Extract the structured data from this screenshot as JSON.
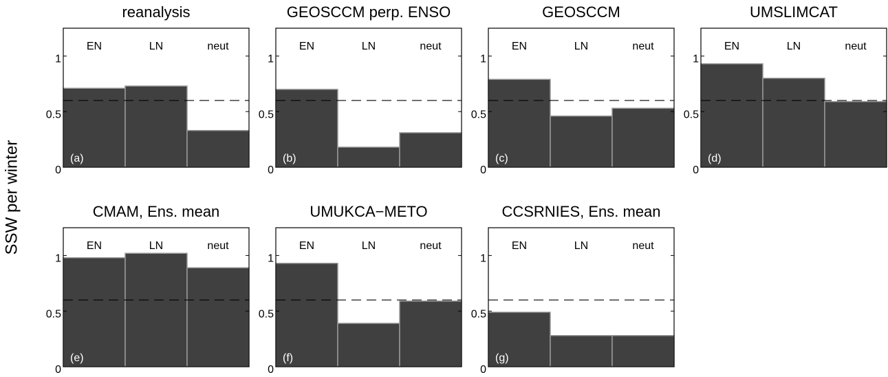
{
  "ylabel": "SSW per winter",
  "chart_data": [
    {
      "type": "bar",
      "title": "reanalysis",
      "panel_label": "(a)",
      "categories": [
        "EN",
        "LN",
        "neut"
      ],
      "values": [
        0.71,
        0.73,
        0.33
      ],
      "color": "#404040",
      "reference_line": 0.6,
      "ylim": [
        0,
        1.25
      ],
      "yticks": [
        0,
        0.5,
        1
      ]
    },
    {
      "type": "bar",
      "title": "GEOSCCM perp. ENSO",
      "panel_label": "(b)",
      "categories": [
        "EN",
        "LN",
        "neut"
      ],
      "values": [
        0.7,
        0.18,
        0.31
      ],
      "color": "#404040",
      "reference_line": 0.6,
      "ylim": [
        0,
        1.25
      ],
      "yticks": [
        0,
        0.5,
        1
      ]
    },
    {
      "type": "bar",
      "title": "GEOSCCM",
      "panel_label": "(c)",
      "categories": [
        "EN",
        "LN",
        "neut"
      ],
      "values": [
        0.79,
        0.46,
        0.53
      ],
      "color": "#404040",
      "reference_line": 0.6,
      "ylim": [
        0,
        1.25
      ],
      "yticks": [
        0,
        0.5,
        1
      ]
    },
    {
      "type": "bar",
      "title": "UMSLIMCAT",
      "panel_label": "(d)",
      "categories": [
        "EN",
        "LN",
        "neut"
      ],
      "values": [
        0.93,
        0.8,
        0.59
      ],
      "color": "#404040",
      "reference_line": 0.6,
      "ylim": [
        0,
        1.25
      ],
      "yticks": [
        0,
        0.5,
        1
      ]
    },
    {
      "type": "bar",
      "title": "CMAM, Ens. mean",
      "panel_label": "(e)",
      "categories": [
        "EN",
        "LN",
        "neut"
      ],
      "values": [
        0.98,
        1.02,
        0.89
      ],
      "color": "#404040",
      "reference_line": 0.6,
      "ylim": [
        0,
        1.25
      ],
      "yticks": [
        0,
        0.5,
        1
      ]
    },
    {
      "type": "bar",
      "title": "UMUKCA−METO",
      "panel_label": "(f)",
      "categories": [
        "EN",
        "LN",
        "neut"
      ],
      "values": [
        0.93,
        0.39,
        0.59
      ],
      "color": "#404040",
      "reference_line": 0.6,
      "ylim": [
        0,
        1.25
      ],
      "yticks": [
        0,
        0.5,
        1
      ]
    },
    {
      "type": "bar",
      "title": "CCSRNIES, Ens. mean",
      "panel_label": "(g)",
      "categories": [
        "EN",
        "LN",
        "neut"
      ],
      "values": [
        0.49,
        0.28,
        0.28
      ],
      "color": "#404040",
      "reference_line": 0.6,
      "ylim": [
        0,
        1.25
      ],
      "yticks": [
        0,
        0.5,
        1
      ]
    }
  ]
}
